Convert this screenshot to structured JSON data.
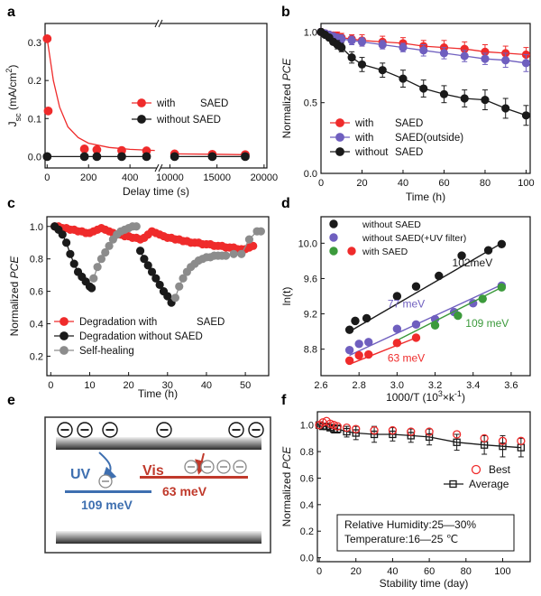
{
  "panel_letters": {
    "a": "a",
    "b": "b",
    "c": "c",
    "d": "d",
    "e": "e",
    "f": "f"
  },
  "colors": {
    "red": "#ef2b2b",
    "black": "#1a1a1a",
    "purple": "#6f5fbf",
    "gray": "#8c8c8c",
    "green": "#3c9a3c",
    "ev_blue": "#3e6fb0",
    "ev_red": "#c0392b"
  },
  "chart_data": [
    {
      "id": "a",
      "type": "scatter",
      "broken_x_axis": true,
      "title": "",
      "xlabel": "Delay time (s)",
      "ylabel": "J",
      "ylabel_sub": "sc",
      "ylabel_unit": " (mA/cm",
      "ylabel_sup": "2",
      "ylabel_close": ")",
      "segment1": {
        "xlim": [
          -10,
          530
        ],
        "ticks": [
          0,
          200,
          400
        ]
      },
      "segment2": {
        "xlim": [
          9000,
          20300
        ],
        "ticks": [
          10000,
          15000,
          20000
        ]
      },
      "ylim": [
        -0.03,
        0.35
      ],
      "yticks": [
        0.0,
        0.1,
        0.2,
        0.3
      ],
      "ytick_labels": [
        "0.0",
        "0.1",
        "0.2",
        "0.3"
      ],
      "legend": [
        {
          "name": "with",
          "suffix": "SAED",
          "color": "red"
        },
        {
          "name": "without SAED",
          "suffix": "",
          "color": "black"
        }
      ],
      "series": [
        {
          "name": "with SAED",
          "color": "red",
          "points": [
            [
              0,
              0.31
            ],
            [
              5,
              0.12
            ],
            [
              180,
              0.02
            ],
            [
              240,
              0.018
            ],
            [
              360,
              0.016
            ],
            [
              480,
              0.015
            ],
            [
              10500,
              0.007
            ],
            [
              14500,
              0.006
            ],
            [
              18000,
              0.005
            ]
          ],
          "fit": [
            [
              0,
              0.31
            ],
            [
              30,
              0.2
            ],
            [
              60,
              0.13
            ],
            [
              100,
              0.078
            ],
            [
              150,
              0.05
            ],
            [
              200,
              0.035
            ],
            [
              300,
              0.024
            ],
            [
              400,
              0.019
            ],
            [
              520,
              0.016
            ]
          ]
        },
        {
          "name": "without SAED",
          "color": "black",
          "points": [
            [
              0,
              0.0
            ],
            [
              180,
              0.0
            ],
            [
              240,
              0.0
            ],
            [
              360,
              0.0
            ],
            [
              480,
              0.0
            ],
            [
              10500,
              0.0
            ],
            [
              14500,
              0.0
            ],
            [
              18000,
              0.0
            ]
          ]
        }
      ]
    },
    {
      "id": "b",
      "type": "line",
      "xlabel": "Time (h)",
      "ylabel": "Normalized ",
      "ylabel_italic": "PCE",
      "xlim": [
        0,
        102
      ],
      "xticks": [
        0,
        20,
        40,
        60,
        80,
        100
      ],
      "ylim": [
        0.0,
        1.06
      ],
      "yticks": [
        0.0,
        0.5,
        1.0
      ],
      "ytick_labels": [
        "0.0",
        "0.5",
        "1.0"
      ],
      "legend": [
        {
          "name": "with",
          "suffix": "SAED",
          "color": "red"
        },
        {
          "name": "with",
          "suffix": "SAED(outside)",
          "color": "purple"
        },
        {
          "name": "without",
          "suffix": "SAED",
          "color": "black"
        }
      ],
      "series": [
        {
          "name": "with SAED",
          "color": "red",
          "x": [
            0,
            2,
            4,
            6,
            8,
            10,
            15,
            20,
            30,
            40,
            50,
            60,
            70,
            80,
            90,
            100
          ],
          "y": [
            1.0,
            0.99,
            0.98,
            0.975,
            0.97,
            0.96,
            0.95,
            0.94,
            0.93,
            0.92,
            0.9,
            0.89,
            0.88,
            0.86,
            0.85,
            0.84
          ],
          "err": [
            0.02,
            0.02,
            0.02,
            0.02,
            0.03,
            0.03,
            0.03,
            0.04,
            0.04,
            0.04,
            0.04,
            0.05,
            0.05,
            0.05,
            0.05,
            0.05
          ]
        },
        {
          "name": "with SAED(outside)",
          "color": "purple",
          "x": [
            0,
            2,
            4,
            6,
            8,
            10,
            15,
            20,
            30,
            40,
            50,
            60,
            70,
            80,
            90,
            100
          ],
          "y": [
            1.0,
            0.99,
            0.98,
            0.97,
            0.96,
            0.95,
            0.94,
            0.93,
            0.91,
            0.89,
            0.87,
            0.85,
            0.83,
            0.81,
            0.8,
            0.78
          ],
          "err": [
            0.02,
            0.02,
            0.02,
            0.02,
            0.02,
            0.03,
            0.03,
            0.03,
            0.03,
            0.03,
            0.04,
            0.04,
            0.04,
            0.04,
            0.05,
            0.06
          ]
        },
        {
          "name": "without SAED",
          "color": "black",
          "x": [
            0,
            2,
            4,
            6,
            8,
            10,
            15,
            20,
            30,
            40,
            50,
            60,
            70,
            80,
            90,
            100
          ],
          "y": [
            1.0,
            0.98,
            0.96,
            0.93,
            0.91,
            0.89,
            0.82,
            0.77,
            0.73,
            0.67,
            0.6,
            0.56,
            0.53,
            0.52,
            0.46,
            0.41
          ],
          "err": [
            0.01,
            0.01,
            0.02,
            0.02,
            0.03,
            0.03,
            0.04,
            0.05,
            0.05,
            0.06,
            0.06,
            0.06,
            0.06,
            0.07,
            0.07,
            0.07
          ]
        }
      ]
    },
    {
      "id": "c",
      "type": "line",
      "xlabel": "Time (h)",
      "ylabel": "Normalized ",
      "ylabel_italic": "PCE",
      "xlim": [
        -1,
        56
      ],
      "xticks": [
        0,
        10,
        20,
        30,
        40,
        50
      ],
      "ylim": [
        0.08,
        1.06
      ],
      "yticks": [
        0.2,
        0.4,
        0.6,
        0.8,
        1.0
      ],
      "ytick_labels": [
        "0.2",
        "0.4",
        "0.6",
        "0.8",
        "1.0"
      ],
      "legend": [
        {
          "name": "Degradation with",
          "suffix": "SAED",
          "color": "red"
        },
        {
          "name": "Degradation without SAED",
          "suffix": "",
          "color": "black"
        },
        {
          "name": "Self-healing",
          "suffix": "",
          "color": "gray"
        }
      ],
      "series": [
        {
          "name": "Degradation with SAED",
          "color": "red",
          "x": [
            1,
            2,
            3,
            4,
            5,
            6,
            7,
            8,
            9,
            10,
            11,
            12,
            13,
            14,
            15,
            16,
            17,
            18,
            19,
            20,
            21,
            22,
            23,
            24,
            25,
            26,
            27,
            28,
            29,
            30,
            31,
            32,
            33,
            34,
            35,
            36,
            37,
            38,
            39,
            40,
            41,
            42,
            43,
            44,
            45,
            46,
            47,
            48,
            49,
            50,
            51,
            52
          ],
          "y": [
            1.0,
            1.0,
            0.99,
            0.99,
            0.98,
            0.98,
            0.97,
            0.97,
            0.96,
            0.96,
            0.97,
            0.98,
            0.99,
            0.98,
            0.97,
            0.96,
            0.95,
            0.95,
            0.94,
            0.94,
            0.93,
            0.93,
            0.92,
            0.93,
            0.95,
            0.97,
            0.96,
            0.95,
            0.94,
            0.93,
            0.93,
            0.92,
            0.92,
            0.91,
            0.91,
            0.9,
            0.9,
            0.9,
            0.89,
            0.89,
            0.89,
            0.88,
            0.88,
            0.88,
            0.87,
            0.87,
            0.87,
            0.86,
            0.86,
            0.86,
            0.87,
            0.88
          ]
        },
        {
          "name": "Degradation without SAED",
          "color": "black",
          "x": [
            1,
            2,
            3,
            4,
            5,
            6,
            7,
            8,
            9,
            10,
            10.5,
            23,
            24,
            25,
            26,
            27,
            28,
            29,
            30,
            31
          ],
          "y": [
            1.0,
            0.98,
            0.95,
            0.9,
            0.83,
            0.77,
            0.72,
            0.69,
            0.66,
            0.63,
            0.62,
            0.85,
            0.8,
            0.76,
            0.72,
            0.68,
            0.64,
            0.6,
            0.57,
            0.53
          ]
        },
        {
          "name": "Self-healing",
          "color": "gray",
          "x": [
            11,
            12,
            13,
            14,
            15,
            16,
            17,
            18,
            19,
            20,
            21,
            22,
            32,
            33,
            34,
            35,
            36,
            37,
            38,
            39,
            40,
            41,
            42,
            43,
            44,
            45,
            47,
            49,
            51,
            53,
            54
          ],
          "y": [
            0.68,
            0.75,
            0.8,
            0.84,
            0.88,
            0.92,
            0.95,
            0.97,
            0.98,
            0.99,
            1.0,
            1.0,
            0.56,
            0.63,
            0.68,
            0.72,
            0.75,
            0.77,
            0.79,
            0.8,
            0.81,
            0.81,
            0.82,
            0.82,
            0.82,
            0.82,
            0.83,
            0.83,
            0.92,
            0.97,
            0.97
          ]
        }
      ]
    },
    {
      "id": "d",
      "type": "scatter",
      "xlabel": "1000/T (10",
      "xlabel_sup": "3",
      "xlabel_mid": "×k",
      "xlabel_sup2": "-1",
      "xlabel_close": ")",
      "ylabel": "ln(t)",
      "xlim": [
        2.6,
        3.7
      ],
      "xticks": [
        2.6,
        2.8,
        3.0,
        3.2,
        3.4,
        3.6
      ],
      "xtick_labels": [
        "2.6",
        "2.8",
        "3.0",
        "3.2",
        "3.4",
        "3.6"
      ],
      "ylim": [
        8.5,
        10.3
      ],
      "yticks": [
        8.8,
        9.2,
        9.6,
        10.0
      ],
      "ytick_labels": [
        "8.8",
        "9.2",
        "9.6",
        "10.0"
      ],
      "legend": [
        {
          "name": "without SAED",
          "color": "black"
        },
        {
          "name": "without SAED(+UV filter)",
          "color": "purple"
        },
        {
          "name": "with     SAED",
          "color": "green",
          "color2": "red"
        }
      ],
      "annotations": [
        {
          "text": "102meV",
          "color": "black",
          "x": 3.29,
          "y": 9.74
        },
        {
          "text": "77 meV",
          "color": "purple",
          "x": 2.95,
          "y": 9.27
        },
        {
          "text": "109 meV",
          "color": "green",
          "x": 3.36,
          "y": 9.05
        },
        {
          "text": "63 meV",
          "color": "red",
          "x": 2.95,
          "y": 8.66
        }
      ],
      "series": [
        {
          "name": "without SAED",
          "color": "black",
          "x": [
            2.75,
            2.78,
            2.84,
            3.0,
            3.1,
            3.22,
            3.34,
            3.48,
            3.55
          ],
          "y": [
            9.02,
            9.12,
            9.15,
            9.4,
            9.51,
            9.63,
            9.86,
            9.92,
            9.99
          ],
          "fit": [
            [
              2.75,
              9.0
            ],
            [
              3.55,
              10.0
            ]
          ]
        },
        {
          "name": "without SAED(+UV filter)",
          "color": "purple",
          "x": [
            2.75,
            2.8,
            2.85,
            3.0,
            3.1,
            3.2,
            3.3,
            3.4,
            3.55
          ],
          "y": [
            8.79,
            8.86,
            8.88,
            9.03,
            9.08,
            9.14,
            9.22,
            9.32,
            9.52
          ],
          "fit": [
            [
              2.75,
              8.73
            ],
            [
              3.55,
              9.53
            ]
          ]
        },
        {
          "name": "with SAED (green)",
          "color": "green",
          "x": [
            3.2,
            3.32,
            3.45,
            3.55
          ],
          "y": [
            9.07,
            9.18,
            9.37,
            9.5
          ],
          "fit": [
            [
              3.0,
              8.9
            ],
            [
              3.55,
              9.5
            ]
          ]
        },
        {
          "name": "with SAED (red)",
          "color": "red",
          "x": [
            2.75,
            2.8,
            2.85,
            3.0,
            3.1
          ],
          "y": [
            8.67,
            8.73,
            8.74,
            8.87,
            8.93
          ],
          "fit": [
            [
              2.75,
              8.63
            ],
            [
              3.1,
              8.93
            ]
          ]
        }
      ]
    },
    {
      "id": "f",
      "type": "scatter",
      "xlabel": "Stability time (day)",
      "ylabel": "Normalized ",
      "ylabel_italic": "PCE",
      "xlim": [
        -1,
        115
      ],
      "xticks": [
        0,
        20,
        40,
        60,
        80,
        100
      ],
      "ylim": [
        -0.03,
        1.1
      ],
      "yticks": [
        0.0,
        0.2,
        0.4,
        0.6,
        0.8,
        1.0
      ],
      "ytick_labels": [
        "0.0",
        "0.2",
        "0.4",
        "0.6",
        "0.8",
        "1.0"
      ],
      "legend": [
        {
          "name": "Best",
          "marker": "open-circle",
          "color": "red"
        },
        {
          "name": "Average",
          "marker": "square-line",
          "color": "black"
        }
      ],
      "info_box": [
        "Relative Humidity:25—30%",
        "Temperature:16—25   ℃"
      ],
      "series": [
        {
          "name": "Best",
          "color": "red",
          "x": [
            0,
            2,
            4,
            6,
            8,
            10,
            15,
            20,
            30,
            40,
            50,
            60,
            75,
            90,
            100,
            110
          ],
          "y": [
            1.0,
            1.02,
            1.03,
            1.01,
            1.0,
            0.99,
            0.98,
            0.97,
            0.96,
            0.96,
            0.95,
            0.95,
            0.93,
            0.9,
            0.88,
            0.88
          ]
        },
        {
          "name": "Average",
          "color": "black",
          "x": [
            0,
            2,
            4,
            6,
            8,
            10,
            15,
            20,
            30,
            40,
            50,
            60,
            75,
            90,
            100,
            110
          ],
          "y": [
            1.0,
            0.99,
            0.99,
            0.98,
            0.97,
            0.97,
            0.95,
            0.94,
            0.93,
            0.93,
            0.92,
            0.91,
            0.87,
            0.85,
            0.84,
            0.83
          ],
          "err": [
            0.01,
            0.02,
            0.02,
            0.02,
            0.03,
            0.03,
            0.04,
            0.05,
            0.06,
            0.05,
            0.05,
            0.06,
            0.06,
            0.07,
            0.08,
            0.07
          ]
        }
      ]
    }
  ],
  "panel_e": {
    "uv_label": "UV",
    "vis_label": "Vis",
    "uv_energy": "109 meV",
    "vis_energy": "63 meV",
    "charge_symbol": "⊖"
  }
}
